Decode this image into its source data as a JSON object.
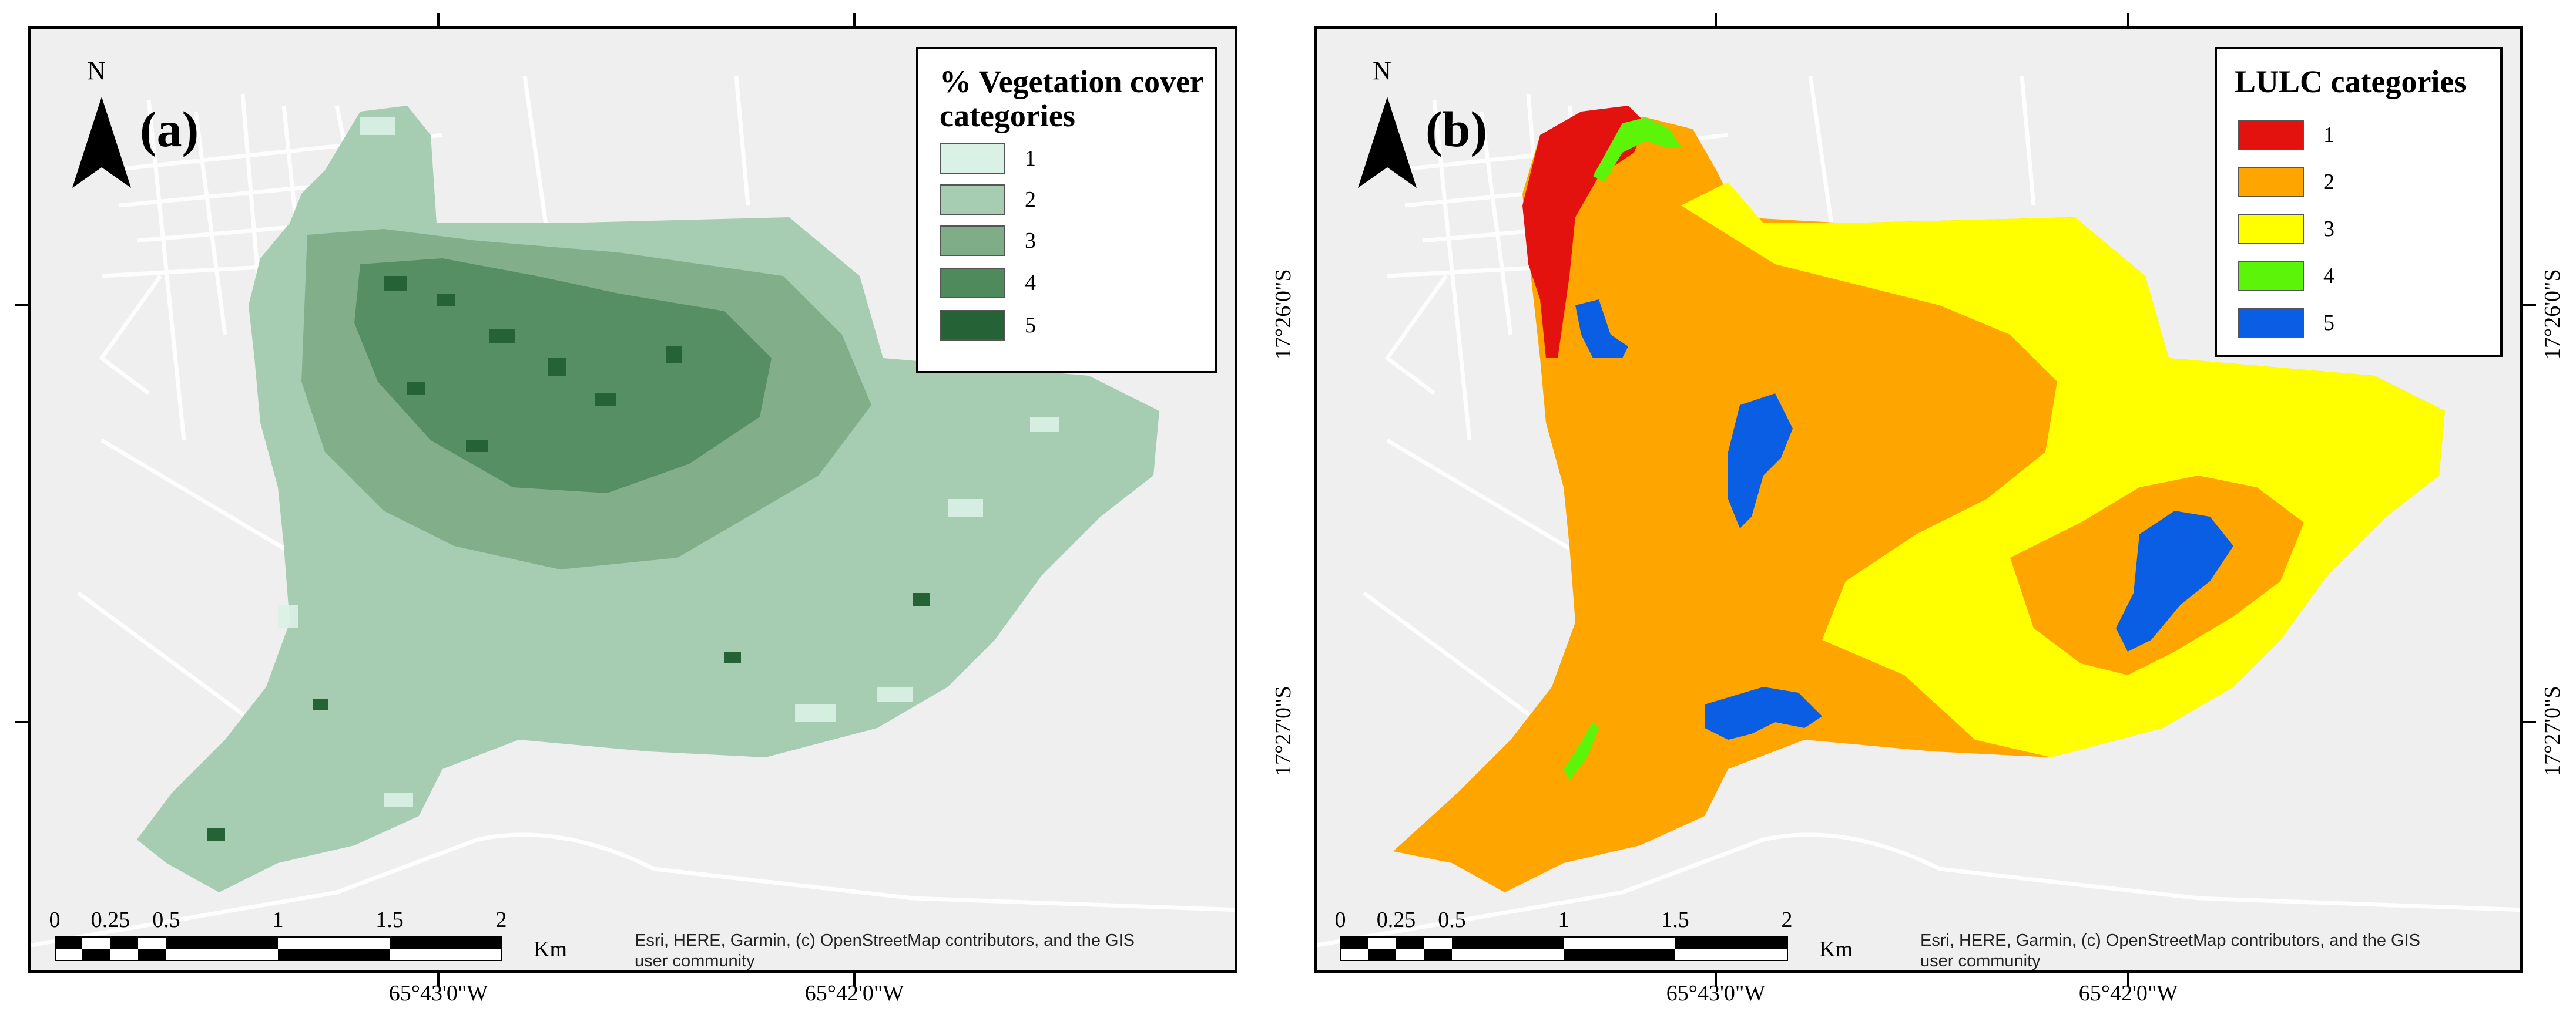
{
  "panels": {
    "a": {
      "letter": "(a)",
      "north": "N",
      "legend": {
        "title": "% Vegetation cover categories",
        "items": [
          {
            "label": "1",
            "color": "#daf2e6"
          },
          {
            "label": "2",
            "color": "#a6cdb2"
          },
          {
            "label": "3",
            "color": "#7fad88"
          },
          {
            "label": "4",
            "color": "#4f8a5c"
          },
          {
            "label": "5",
            "color": "#256235"
          }
        ]
      },
      "scale": {
        "labels": [
          "0",
          "0.25",
          "0.5",
          "1",
          "1.5",
          "2"
        ],
        "units": "Km"
      },
      "credit": "Esri, HERE, Garmin, (c) OpenStreetMap contributors, and the GIS user community"
    },
    "b": {
      "letter": "(b)",
      "north": "N",
      "legend": {
        "title": "LULC categories",
        "items": [
          {
            "label": "1",
            "color": "#e3120f"
          },
          {
            "label": "2",
            "color": "#ffa500"
          },
          {
            "label": "3",
            "color": "#ffff00"
          },
          {
            "label": "4",
            "color": "#5cf50a"
          },
          {
            "label": "5",
            "color": "#0a5ee3"
          }
        ]
      },
      "scale": {
        "labels": [
          "0",
          "0.25",
          "0.5",
          "1",
          "1.5",
          "2"
        ],
        "units": "Km"
      },
      "credit": "Esri, HERE, Garmin, (c) OpenStreetMap contributors, and the GIS user community"
    }
  },
  "graticule": {
    "lon": [
      "65°43'0\"W",
      "65°42'0\"W"
    ],
    "lat": [
      "17°26'0\"S",
      "17°27'0\"S"
    ]
  }
}
